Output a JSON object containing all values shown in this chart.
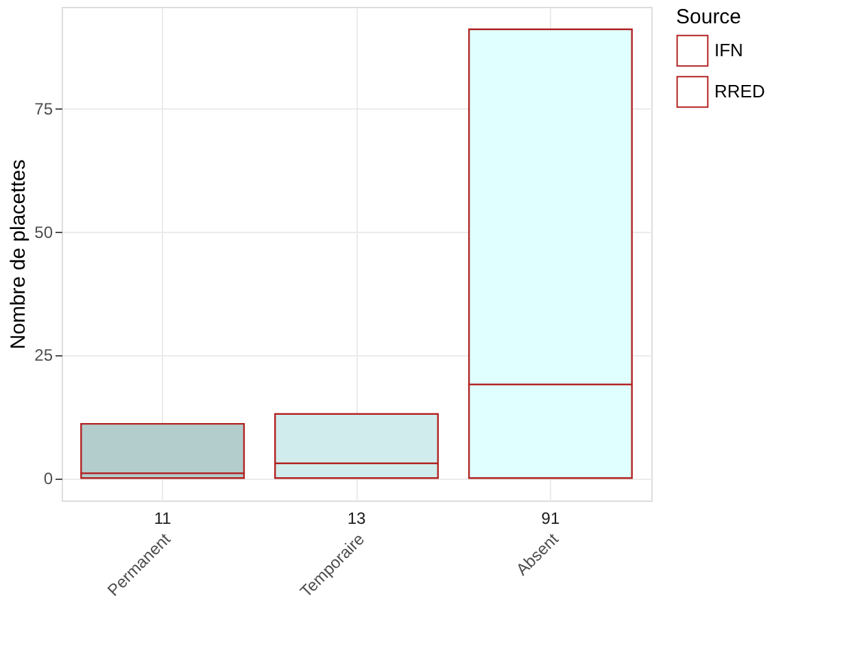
{
  "chart_data": {
    "type": "bar",
    "stacked": true,
    "categories": [
      "Permanent",
      "Temporaire",
      "Absent"
    ],
    "series": [
      {
        "name": "RRED",
        "color": "#b22222",
        "colors": [
          "#b3cccc",
          "#d1ecec",
          "#e0ffff"
        ],
        "values": [
          1,
          3,
          19
        ]
      },
      {
        "name": "IFN",
        "color": "#b22222",
        "colors": [
          "#b3cccc",
          "#d1ecec",
          "#e0ffff"
        ],
        "values": [
          10,
          10,
          72
        ]
      }
    ],
    "totals": [
      "11",
      "13",
      "91"
    ],
    "ylabel": "Nombre de placettes",
    "legend_title": "Source",
    "legend": "right",
    "ylim": [
      -4.55,
      95.55
    ],
    "yticks": [
      0,
      25,
      50,
      75
    ],
    "grid": true
  }
}
